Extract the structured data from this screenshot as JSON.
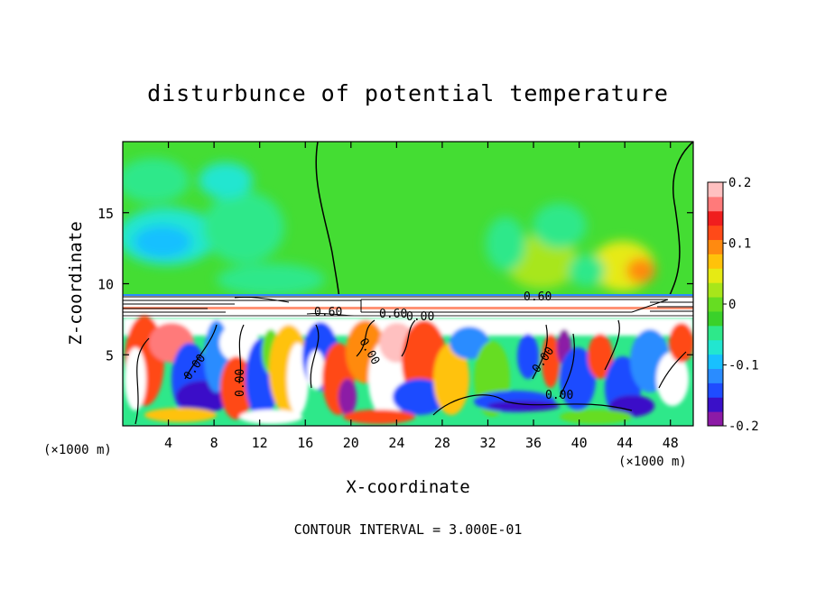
{
  "chart_data": {
    "type": "heatmap",
    "title": "disturbunce of potential temperature",
    "xlabel": "X-coordinate",
    "ylabel": "Z-coordinate",
    "x_unit_label": "(×1000 m)",
    "y_unit_label": "(×1000 m)",
    "xlim": [
      0,
      50
    ],
    "ylim": [
      0,
      20
    ],
    "x_ticks": [
      "4",
      "8",
      "12",
      "16",
      "20",
      "24",
      "28",
      "32",
      "36",
      "40",
      "44",
      "48"
    ],
    "x_tick_values": [
      4,
      8,
      12,
      16,
      20,
      24,
      28,
      32,
      36,
      40,
      44,
      48
    ],
    "y_ticks": [
      "5",
      "10",
      "15"
    ],
    "y_tick_values": [
      5,
      10,
      15
    ],
    "colorbar": {
      "range": [
        -0.2,
        0.2
      ],
      "tick_labels": [
        "0.2",
        "0.1",
        "0",
        "-0.1",
        "-0.2"
      ],
      "tick_values": [
        0.2,
        0.1,
        0,
        -0.1,
        -0.2
      ],
      "colors": [
        "#8c1aa6",
        "#3a10c8",
        "#1f4cff",
        "#2a8cff",
        "#18c0ff",
        "#22e6d0",
        "#2ee88a",
        "#3ad12a",
        "#66dd22",
        "#a8e61a",
        "#e6ea14",
        "#ffc20a",
        "#ff8a10",
        "#ff4a18",
        "#f01e1e",
        "#ff7a7a",
        "#ffc0c0"
      ]
    },
    "contour_labels": [
      "0.60",
      "0.60",
      "0.60",
      "0.00",
      "0.00",
      "0.00",
      "0.00",
      "0.00",
      "0.00"
    ],
    "footer": "CONTOUR INTERVAL = 3.000E-01"
  }
}
